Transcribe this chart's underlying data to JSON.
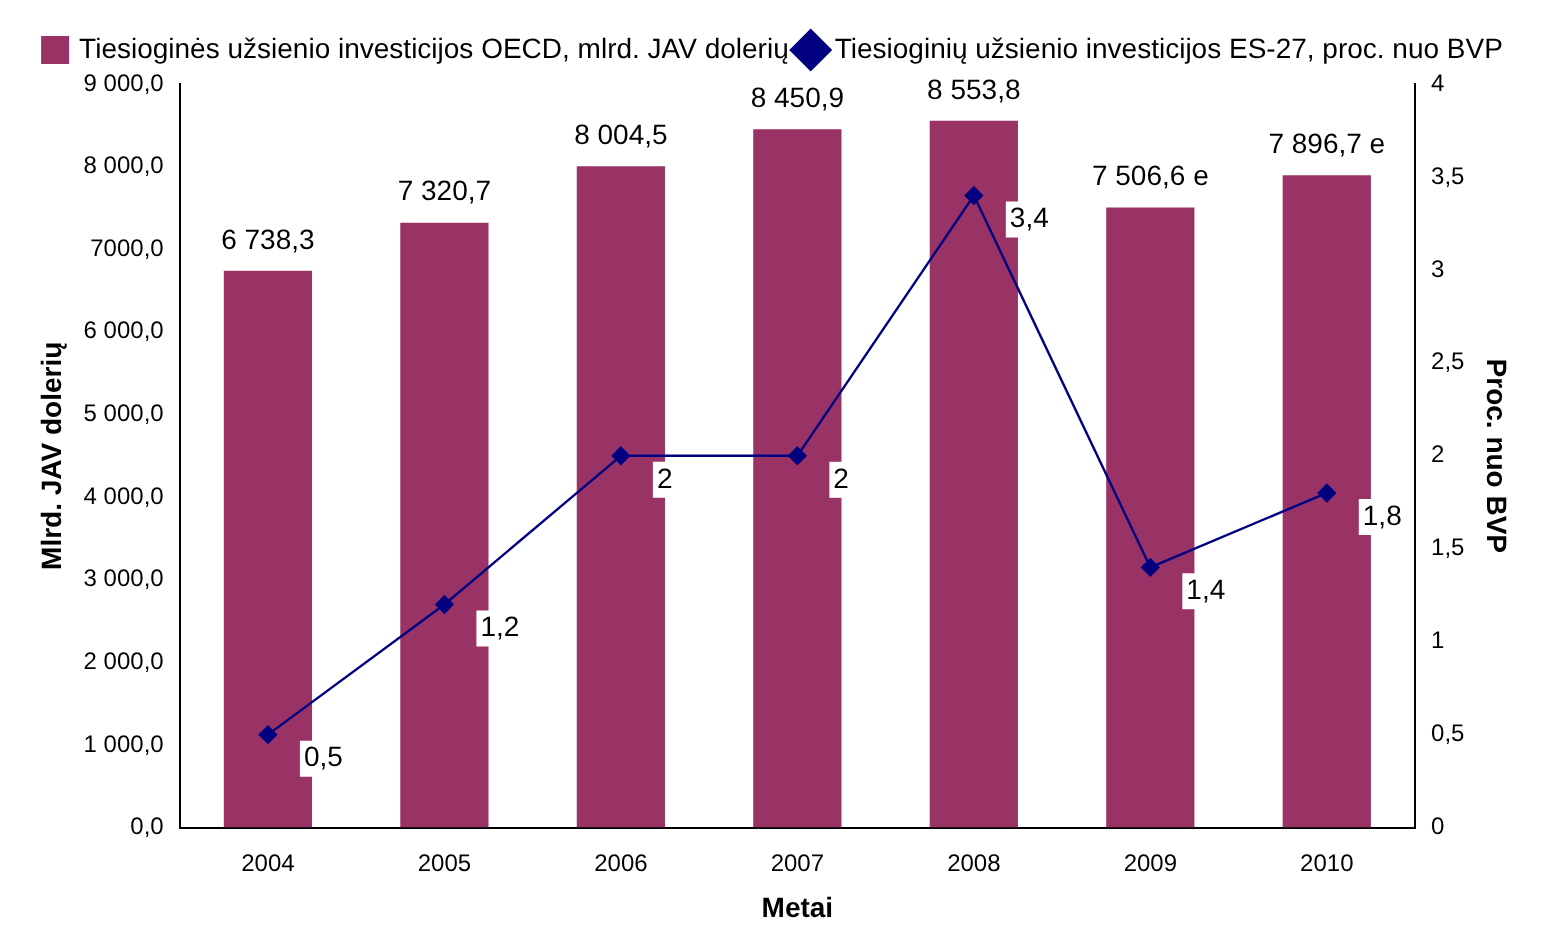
{
  "chart_data": {
    "type": "bar",
    "xlabel": "Metai",
    "ylabel": "Mlrd. JAV dolerių",
    "y2label": "Proc. nuo BVP",
    "categories": [
      "2004",
      "2005",
      "2006",
      "2007",
      "2008",
      "2009",
      "2010"
    ],
    "series": [
      {
        "name": "Tiesioginės užsienio investicijos OECD, mlrd. JAV dolerių",
        "color": "#993366",
        "values": [
          6738.3,
          7320.7,
          8004.5,
          8450.9,
          8553.8,
          7506.6,
          7896.7
        ],
        "value_labels": [
          "6 738,3",
          "7 320,7",
          "8 004,5",
          "8 450,9",
          "8 553,8",
          "7 506,6 e",
          "7 896,7 e"
        ]
      },
      {
        "name": "Tiesioginių užsienio investicijos ES-27, proc. nuo BVP",
        "type": "line",
        "axis": "y2",
        "color": "#000080",
        "values": [
          0.5,
          1.2,
          2,
          2,
          3.4,
          1.4,
          1.8
        ],
        "value_labels": [
          "0,5",
          "1,2",
          "2",
          "2",
          "3,4",
          "1,4",
          "1,8"
        ]
      }
    ],
    "ylim": [
      0,
      9000
    ],
    "yticks": [
      {
        "value": 0,
        "label": "0,0"
      },
      {
        "value": 1000,
        "label": "1 000,0"
      },
      {
        "value": 2000,
        "label": "2 000,0"
      },
      {
        "value": 3000,
        "label": "3 000,0"
      },
      {
        "value": 4000,
        "label": "4 000,0"
      },
      {
        "value": 5000,
        "label": "5 000,0"
      },
      {
        "value": 6000,
        "label": "6 000,0"
      },
      {
        "value": 7000,
        "label": "7000,0"
      },
      {
        "value": 8000,
        "label": "8 000,0"
      },
      {
        "value": 9000,
        "label": "9 000,0"
      }
    ],
    "y2lim": [
      0,
      4
    ],
    "y2ticks": [
      0,
      {
        "value": 0.5,
        "label": "0,5"
      },
      1,
      {
        "value": 1.5,
        "label": "1,5"
      },
      2,
      {
        "value": 2.5,
        "label": "2,5"
      },
      3,
      {
        "value": 3.5,
        "label": "3,5"
      },
      4
    ],
    "grid": false,
    "legend": "top",
    "marker": "diamond",
    "line_style": "solid"
  }
}
